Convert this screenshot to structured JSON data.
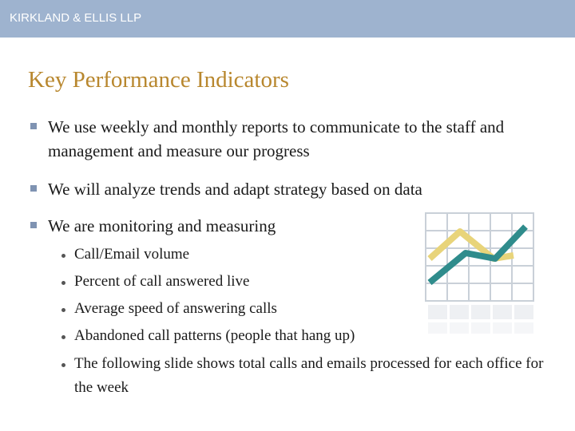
{
  "header": {
    "title": "KIRKLAND & ELLIS LLP"
  },
  "title": "Key Performance Indicators",
  "bullets": [
    {
      "text": "We use weekly and monthly reports to communicate to the staff and management and measure our progress"
    },
    {
      "text": "We will analyze trends and adapt strategy based on data"
    },
    {
      "text": "We are monitoring and measuring",
      "sub_bullets": [
        "Call/Email volume",
        "Percent of call answered live",
        "Average speed of answering calls",
        "Abandoned call patterns (people that hang up)",
        "The following slide shows total calls and emails processed for each office for the week"
      ]
    }
  ]
}
